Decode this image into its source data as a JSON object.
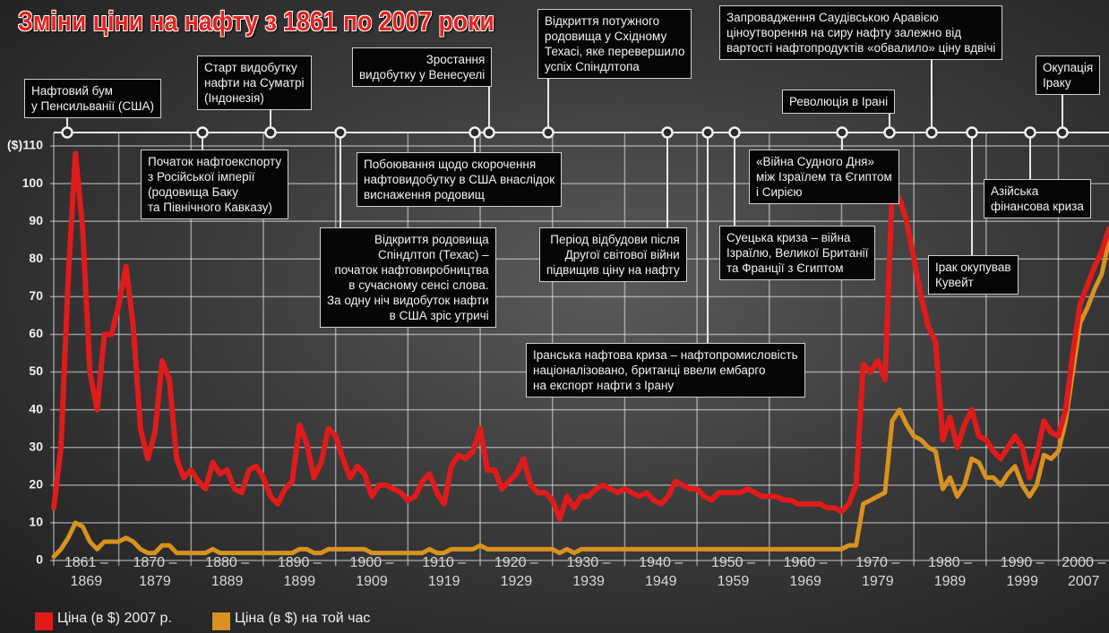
{
  "chart_data": {
    "type": "line",
    "title": "Зміни ціни на нафту з 1861 по 2007 роки",
    "y_unit": "($)",
    "grid": true,
    "xlim": [
      1861,
      2007
    ],
    "ylim": [
      0,
      110
    ],
    "yticks": [
      0,
      10,
      20,
      30,
      40,
      50,
      60,
      70,
      80,
      90,
      100,
      110
    ],
    "xticks": [
      {
        "value": 1861,
        "label": "1861 – 1869"
      },
      {
        "value": 1870,
        "label": "1870 – 1879"
      },
      {
        "value": 1880,
        "label": "1880 – 1889"
      },
      {
        "value": 1890,
        "label": "1890 – 1899"
      },
      {
        "value": 1900,
        "label": "1900 – 1909"
      },
      {
        "value": 1910,
        "label": "1910 – 1919"
      },
      {
        "value": 1920,
        "label": "1920 – 1929"
      },
      {
        "value": 1930,
        "label": "1930 – 1939"
      },
      {
        "value": 1940,
        "label": "1940 – 1949"
      },
      {
        "value": 1950,
        "label": "1950 – 1959"
      },
      {
        "value": 1960,
        "label": "1960 – 1969"
      },
      {
        "value": 1970,
        "label": "1970 – 1979"
      },
      {
        "value": 1980,
        "label": "1980 – 1989"
      },
      {
        "value": 1990,
        "label": "1990 – 1999"
      },
      {
        "value": 2000,
        "label": "2000 – 2007"
      }
    ],
    "x": [
      1861,
      1862,
      1863,
      1864,
      1865,
      1866,
      1867,
      1868,
      1869,
      1870,
      1871,
      1872,
      1873,
      1874,
      1875,
      1876,
      1877,
      1878,
      1879,
      1880,
      1881,
      1882,
      1883,
      1884,
      1885,
      1886,
      1887,
      1888,
      1889,
      1890,
      1891,
      1892,
      1893,
      1894,
      1895,
      1896,
      1897,
      1898,
      1899,
      1900,
      1901,
      1902,
      1903,
      1904,
      1905,
      1906,
      1907,
      1908,
      1909,
      1910,
      1911,
      1912,
      1913,
      1914,
      1915,
      1916,
      1917,
      1918,
      1919,
      1920,
      1921,
      1922,
      1923,
      1924,
      1925,
      1926,
      1927,
      1928,
      1929,
      1930,
      1931,
      1932,
      1933,
      1934,
      1935,
      1936,
      1937,
      1938,
      1939,
      1940,
      1941,
      1942,
      1943,
      1944,
      1945,
      1946,
      1947,
      1948,
      1949,
      1950,
      1951,
      1952,
      1953,
      1954,
      1955,
      1956,
      1957,
      1958,
      1959,
      1960,
      1961,
      1962,
      1963,
      1964,
      1965,
      1966,
      1967,
      1968,
      1969,
      1970,
      1971,
      1972,
      1973,
      1974,
      1975,
      1976,
      1977,
      1978,
      1979,
      1980,
      1981,
      1982,
      1983,
      1984,
      1985,
      1986,
      1987,
      1988,
      1989,
      1990,
      1991,
      1992,
      1993,
      1994,
      1995,
      1996,
      1997,
      1998,
      1999,
      2000,
      2001,
      2002,
      2003,
      2004,
      2005,
      2006,
      2007
    ],
    "series": [
      {
        "name": "Ціна (в $) 2007 р.",
        "color": "#e01b1b",
        "values": [
          14,
          30,
          75,
          108,
          88,
          50,
          40,
          60,
          60,
          68,
          78,
          62,
          35,
          27,
          34,
          53,
          48,
          27,
          22,
          24,
          21,
          19,
          26,
          23,
          24,
          19,
          18,
          24,
          25,
          22,
          17,
          15,
          19,
          21,
          36,
          31,
          22,
          26,
          35,
          33,
          27,
          22,
          25,
          23,
          17,
          20,
          20,
          19,
          18,
          16,
          17,
          21,
          23,
          18,
          15,
          25,
          28,
          27,
          29,
          35,
          24,
          24,
          19,
          21,
          23,
          27,
          20,
          18,
          18,
          16,
          11,
          17,
          14,
          17,
          17,
          19,
          20,
          19,
          18,
          19,
          18,
          17,
          18,
          16,
          15,
          17,
          21,
          20,
          19,
          19,
          17,
          16,
          18,
          18,
          18,
          18,
          19,
          18,
          17,
          17,
          17,
          16,
          16,
          15,
          15,
          15,
          15,
          14,
          14,
          13,
          15,
          20,
          52,
          50,
          53,
          48,
          98,
          96,
          90,
          80,
          70,
          62,
          58,
          32,
          38,
          30,
          36,
          40,
          33,
          32,
          29,
          27,
          30,
          33,
          30,
          22,
          28,
          37,
          34,
          33,
          40,
          55,
          68,
          73,
          78,
          82,
          88
        ]
      },
      {
        "name": "Ціна (в $) на той час",
        "color": "#d8921f",
        "values": [
          1,
          3,
          6,
          10,
          9,
          5,
          3,
          5,
          5,
          5,
          6,
          5,
          3,
          2,
          2,
          4,
          4,
          2,
          2,
          2,
          2,
          2,
          3,
          2,
          2,
          2,
          2,
          2,
          2,
          2,
          2,
          2,
          2,
          2,
          3,
          3,
          2,
          2,
          3,
          3,
          3,
          3,
          3,
          3,
          2,
          2,
          2,
          2,
          2,
          2,
          2,
          2,
          3,
          2,
          2,
          3,
          3,
          3,
          3,
          4,
          3,
          3,
          3,
          3,
          3,
          3,
          3,
          3,
          3,
          3,
          2,
          3,
          2,
          3,
          3,
          3,
          3,
          3,
          3,
          3,
          3,
          3,
          3,
          3,
          3,
          3,
          3,
          3,
          3,
          3,
          3,
          3,
          3,
          3,
          3,
          3,
          3,
          3,
          3,
          3,
          3,
          3,
          3,
          3,
          3,
          3,
          3,
          3,
          3,
          3,
          4,
          4,
          15,
          16,
          17,
          18,
          37,
          40,
          36,
          33,
          32,
          30,
          29,
          19,
          22,
          17,
          20,
          27,
          26,
          22,
          22,
          20,
          23,
          25,
          20,
          17,
          20,
          28,
          27,
          29,
          37,
          50,
          63,
          67,
          72,
          76,
          85
        ]
      }
    ],
    "annotations": [
      {
        "lines": [
          "Нафтовий бум",
          "у Пенсильванії (США)"
        ]
      },
      {
        "lines": [
          "Старт видобутку",
          "нафти на Суматрі",
          "(Індонезія)"
        ]
      },
      {
        "lines": [
          "Початок нафтоекспорту",
          "з Російської імперії",
          "(родовища Баку",
          "та Північного Кавказу)"
        ]
      },
      {
        "lines": [
          "Зростання",
          "видобутку у Венесуелі"
        ]
      },
      {
        "lines": [
          "Відкриття родовища",
          "Спіндлтоп (Техас) –",
          "початок нафтовиробництва",
          "в сучасному сенсі слова.",
          "За одну ніч видобуток нафти",
          "в США зріс утричі"
        ]
      },
      {
        "lines": [
          "Побоювання щодо скорочення",
          "нафтовидобутку в США внаслідок",
          "виснаження родовищ"
        ]
      },
      {
        "lines": [
          "Відкриття потужного",
          "родовища у Східному",
          "Техасі, яке перевершило",
          "успіх Спіндлтопа"
        ]
      },
      {
        "lines": [
          "Період відбудови після",
          "Другої світової війни",
          "підвищив ціну на нафту"
        ]
      },
      {
        "lines": [
          "Іранська нафтова криза – нафтопромисловість",
          "націоналізовано, британці ввели ембарго",
          "на експорт нафти з Ірану"
        ]
      },
      {
        "lines": [
          "Суецька криза – війна",
          "Ізраїлю, Великої Британії",
          "та Франції з Єгиптом"
        ]
      },
      {
        "lines": [
          "Запровадження Саудівською Аравією",
          "ціноутворення на сиру нафту залежно від",
          "вартості нафтопродуктів «обвалило» ціну вдвічі"
        ]
      },
      {
        "lines": [
          "Революція в Ірані"
        ]
      },
      {
        "lines": [
          "«Війна Судного Дня»",
          "між Ізраїлем та Єгиптом",
          "і Сирією"
        ]
      },
      {
        "lines": [
          "Окупація",
          "Іраку"
        ]
      },
      {
        "lines": [
          "Азійська",
          "фінансова криза"
        ]
      },
      {
        "lines": [
          "Ірак окупував",
          "Кувейт"
        ]
      }
    ]
  }
}
